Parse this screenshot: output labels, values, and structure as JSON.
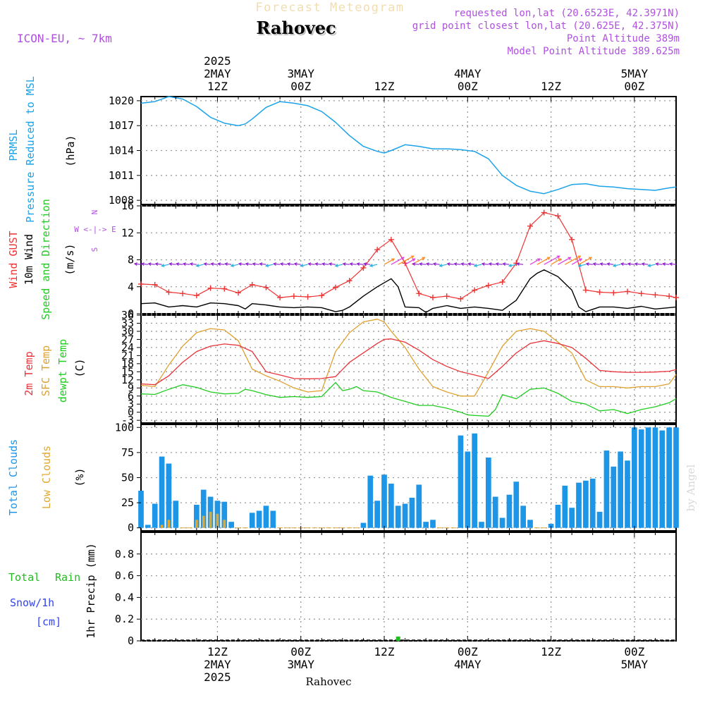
{
  "header": {
    "subtitle": "Forecast Meteogram",
    "title": "Rahovec",
    "model": "ICON-EU, ~ 7km",
    "info_lines": [
      "requested lon,lat (20.6523E, 42.3971N)",
      "grid point closest lon,lat (20.625E, 42.375N)",
      "Point Altitude 389m",
      "Model Point Altitude 389.625m"
    ],
    "watermark": "by Angel",
    "bottom_label": "Rahovec"
  },
  "colors": {
    "pressure": "#1aa3e8",
    "gust": "#ee3333",
    "wind": "#000000",
    "t2m": "#e8333a",
    "sfc": "#e0a030",
    "dewpt": "#22cc22",
    "total_clouds": "#1e96e8",
    "low_clouds": "#e0a830",
    "rain": "#22bb22",
    "snow": "#3344ee",
    "purple": "#b050e0"
  },
  "time_axis": {
    "top_labels": [
      {
        "hour": 12,
        "lines": [
          "2025",
          "2MAY",
          "12Z"
        ]
      },
      {
        "hour": 24,
        "lines": [
          "3MAY",
          "00Z"
        ]
      },
      {
        "hour": 36,
        "lines": [
          "12Z"
        ]
      },
      {
        "hour": 48,
        "lines": [
          "4MAY",
          "00Z"
        ]
      },
      {
        "hour": 60,
        "lines": [
          "12Z"
        ]
      },
      {
        "hour": 72,
        "lines": [
          "5MAY",
          "00Z"
        ]
      }
    ],
    "bottom_labels": [
      {
        "hour": 12,
        "lines": [
          "12Z",
          "2MAY",
          "2025"
        ]
      },
      {
        "hour": 24,
        "lines": [
          "00Z",
          "3MAY"
        ]
      },
      {
        "hour": 36,
        "lines": [
          "12Z"
        ]
      },
      {
        "hour": 48,
        "lines": [
          "00Z",
          "4MAY"
        ]
      },
      {
        "hour": 60,
        "lines": [
          "12Z"
        ]
      },
      {
        "hour": 72,
        "lines": [
          "00Z",
          "5MAY"
        ]
      }
    ],
    "start_hour": 1,
    "end_hour": 78
  },
  "chart_data": [
    {
      "type": "line",
      "panel": "pressure",
      "title": "PRMSL Pressure Reduced to MSL",
      "ylabel": "(hPa)",
      "label_lines": [
        "PRMSL",
        "Pressure Reduced to MSL"
      ],
      "ylim": [
        1007.5,
        1020.5
      ],
      "yticks": [
        1008,
        1011,
        1014,
        1017,
        1020
      ],
      "series": [
        {
          "name": "PRMSL",
          "x": [
            1,
            3,
            5,
            7,
            9,
            11,
            13,
            15,
            16,
            17,
            19,
            21,
            23,
            25,
            27,
            29,
            31,
            33,
            35,
            36,
            37,
            39,
            41,
            43,
            45,
            47,
            49,
            51,
            53,
            55,
            57,
            59,
            61,
            63,
            65,
            67,
            69,
            71,
            73,
            75,
            77,
            78
          ],
          "y": [
            1019.7,
            1019.9,
            1020.5,
            1020.2,
            1019.3,
            1018.0,
            1017.3,
            1017.0,
            1017.2,
            1017.8,
            1019.2,
            1019.9,
            1019.7,
            1019.4,
            1018.7,
            1017.4,
            1015.8,
            1014.5,
            1013.9,
            1013.7,
            1014.0,
            1014.7,
            1014.5,
            1014.2,
            1014.2,
            1014.1,
            1013.9,
            1013.0,
            1011.0,
            1009.8,
            1009.1,
            1008.8,
            1009.3,
            1009.9,
            1010.0,
            1009.7,
            1009.6,
            1009.4,
            1009.3,
            1009.2,
            1009.5,
            1009.6
          ]
        }
      ]
    },
    {
      "type": "line",
      "panel": "wind",
      "title": "Wind GUST / 10m Wind Speed and Direction",
      "ylabel": "(m/s)",
      "label_lines": [
        "Wind GUST",
        "10m Wind",
        "Speed and Direction"
      ],
      "compass": [
        "N",
        "W <-|-> E",
        "S"
      ],
      "ylim": [
        0,
        16
      ],
      "yticks": [
        0,
        4,
        8,
        12,
        16
      ],
      "series": [
        {
          "name": "Wind GUST",
          "x": [
            1,
            3,
            5,
            7,
            9,
            11,
            13,
            15,
            17,
            19,
            21,
            23,
            25,
            27,
            29,
            31,
            33,
            35,
            37,
            39,
            41,
            43,
            45,
            47,
            49,
            51,
            53,
            55,
            57,
            59,
            61,
            63,
            65,
            67,
            69,
            71,
            73,
            75,
            77,
            78
          ],
          "y": [
            4.4,
            4.3,
            3.2,
            3.0,
            2.7,
            3.8,
            3.7,
            3.1,
            4.3,
            3.9,
            2.4,
            2.6,
            2.5,
            2.7,
            3.9,
            4.9,
            6.8,
            9.5,
            11.0,
            7.5,
            3.0,
            2.4,
            2.6,
            2.2,
            3.5,
            4.2,
            4.7,
            7.5,
            13.0,
            15.0,
            14.5,
            11.0,
            3.5,
            3.2,
            3.1,
            3.3,
            3.0,
            2.8,
            2.6,
            2.4
          ]
        },
        {
          "name": "10m Wind",
          "x": [
            1,
            3,
            5,
            7,
            9,
            11,
            13,
            15,
            16,
            17,
            19,
            21,
            23,
            25,
            27,
            29,
            30,
            31,
            33,
            35,
            37,
            38,
            39,
            41,
            42,
            43,
            45,
            47,
            49,
            51,
            53,
            55,
            57,
            58,
            59,
            61,
            63,
            64,
            65,
            67,
            69,
            71,
            73,
            75,
            77,
            78
          ],
          "y": [
            1.5,
            1.6,
            1.0,
            1.2,
            1.0,
            1.6,
            1.5,
            1.2,
            0.7,
            1.5,
            1.3,
            1.0,
            0.9,
            1.0,
            0.9,
            0.3,
            0.5,
            1.0,
            2.6,
            4.0,
            5.2,
            4.0,
            1.0,
            0.9,
            0.2,
            0.8,
            1.2,
            0.8,
            1.0,
            0.8,
            0.5,
            2.0,
            5.2,
            6.0,
            6.5,
            5.5,
            3.5,
            1.0,
            0.3,
            1.0,
            1.0,
            0.8,
            1.1,
            0.7,
            0.9,
            1.0
          ]
        }
      ]
    },
    {
      "type": "line",
      "panel": "temperature",
      "title": "2m Temp / SFC Temp / dewpt Temp",
      "ylabel": "(C)",
      "label_lines": [
        "2m Temp",
        "SFC Temp",
        "dewpt Temp"
      ],
      "ylim": [
        -4,
        36
      ],
      "yticks": [
        -3,
        0,
        3,
        6,
        9,
        12,
        15,
        18,
        21,
        24,
        27,
        30,
        33,
        36
      ],
      "series": [
        {
          "name": "2m Temp",
          "x": [
            1,
            3,
            5,
            7,
            9,
            11,
            13,
            15,
            17,
            19,
            21,
            23,
            25,
            27,
            29,
            31,
            33,
            35,
            36,
            37,
            39,
            41,
            43,
            45,
            47,
            49,
            51,
            53,
            55,
            57,
            59,
            61,
            63,
            65,
            67,
            69,
            71,
            73,
            75,
            77,
            78
          ],
          "y": [
            10.5,
            10.2,
            13.5,
            18.5,
            22.5,
            24.5,
            25.3,
            24.8,
            22.5,
            15.0,
            13.8,
            12.5,
            12.4,
            12.5,
            13.2,
            18.5,
            22.0,
            25.5,
            27.0,
            27.2,
            26.0,
            23.0,
            19.5,
            17.0,
            15.0,
            13.8,
            12.5,
            17.0,
            22.0,
            25.5,
            26.5,
            25.5,
            24.0,
            20.0,
            15.5,
            15.0,
            14.8,
            14.8,
            14.9,
            15.2,
            15.8
          ]
        },
        {
          "name": "SFC Temp",
          "x": [
            1,
            3,
            5,
            7,
            9,
            11,
            13,
            15,
            17,
            19,
            21,
            23,
            25,
            27,
            29,
            31,
            33,
            35,
            36,
            37,
            39,
            41,
            43,
            45,
            47,
            49,
            51,
            53,
            55,
            57,
            59,
            61,
            63,
            65,
            67,
            69,
            71,
            73,
            75,
            77,
            78
          ],
          "y": [
            10.0,
            9.5,
            17.5,
            24.5,
            29.5,
            31.0,
            30.5,
            26.5,
            16.0,
            13.5,
            11.5,
            9.0,
            7.5,
            8.0,
            22.5,
            29.5,
            33.5,
            34.5,
            33.5,
            30.0,
            24.0,
            16.0,
            9.5,
            7.5,
            6.0,
            6.0,
            15.0,
            24.5,
            30.0,
            31.0,
            30.0,
            26.0,
            22.0,
            12.0,
            9.5,
            9.5,
            9.0,
            9.5,
            9.5,
            10.5,
            14.0
          ]
        },
        {
          "name": "dewpt Temp",
          "x": [
            1,
            3,
            5,
            7,
            9,
            11,
            13,
            15,
            16,
            17,
            19,
            21,
            23,
            25,
            27,
            29,
            30,
            31,
            32,
            33,
            35,
            37,
            39,
            41,
            43,
            45,
            47,
            48,
            49,
            51,
            52,
            53,
            55,
            57,
            59,
            61,
            63,
            65,
            67,
            69,
            71,
            73,
            75,
            77,
            78
          ],
          "y": [
            6.8,
            6.6,
            8.5,
            10.2,
            9.2,
            7.5,
            6.8,
            7.0,
            8.5,
            8.0,
            6.5,
            5.5,
            5.8,
            5.5,
            5.8,
            11.0,
            8.0,
            8.5,
            9.5,
            8.0,
            7.5,
            5.5,
            4.0,
            2.5,
            2.5,
            1.5,
            0.0,
            -1.0,
            -1.2,
            -1.5,
            1.0,
            6.5,
            5.0,
            8.5,
            9.0,
            7.0,
            4.0,
            3.0,
            0.5,
            1.0,
            -0.5,
            1.0,
            2.0,
            3.5,
            5.0
          ]
        }
      ]
    },
    {
      "type": "bar",
      "panel": "clouds",
      "title": "Total Clouds / Low Clouds",
      "ylabel": "(%)",
      "label_lines": [
        "Total Clouds",
        "Low Clouds"
      ],
      "ylim": [
        -3,
        103
      ],
      "yticks": [
        0,
        25,
        50,
        75,
        100
      ],
      "hours": [
        1,
        2,
        3,
        4,
        5,
        6,
        7,
        8,
        9,
        10,
        11,
        12,
        13,
        14,
        15,
        16,
        17,
        18,
        19,
        20,
        21,
        22,
        23,
        24,
        25,
        26,
        27,
        28,
        29,
        30,
        31,
        32,
        33,
        34,
        35,
        36,
        37,
        38,
        39,
        40,
        41,
        42,
        43,
        44,
        45,
        46,
        47,
        48,
        49,
        50,
        51,
        52,
        53,
        54,
        55,
        56,
        57,
        58,
        59,
        60,
        61,
        62,
        63,
        64,
        65,
        66,
        67,
        68,
        69,
        70,
        71,
        72,
        73,
        74,
        75,
        76,
        77,
        78
      ],
      "series": [
        {
          "name": "Total Clouds",
          "values": [
            37,
            3,
            24,
            71,
            64,
            27,
            0,
            0,
            23,
            38,
            31,
            27,
            26,
            6,
            0,
            0,
            15,
            17,
            22,
            17,
            0,
            0,
            0,
            0,
            0,
            0,
            0,
            0,
            0,
            0,
            0,
            0,
            5,
            52,
            27,
            53,
            44,
            22,
            24,
            30,
            43,
            6,
            8,
            0,
            0,
            0,
            92,
            76,
            94,
            6,
            70,
            31,
            10,
            33,
            46,
            22,
            8,
            0,
            0,
            4,
            23,
            42,
            20,
            45,
            47,
            49,
            16,
            77,
            61,
            76,
            67,
            100,
            98,
            100,
            100,
            97,
            100,
            100
          ]
        },
        {
          "name": "Low Clouds",
          "values": [
            0,
            0,
            0,
            3,
            8,
            0,
            0,
            0,
            8,
            12,
            16,
            14,
            8,
            0,
            0,
            0,
            0,
            0,
            0,
            0,
            0,
            0,
            0,
            0,
            0,
            0,
            0,
            0,
            0,
            0,
            0,
            0,
            0,
            0,
            0,
            0,
            0,
            0,
            0,
            0,
            0,
            0,
            0,
            0,
            0,
            0,
            0,
            0,
            0,
            0,
            0,
            0,
            0,
            0,
            0,
            0,
            0,
            0,
            0,
            0,
            0,
            0,
            0,
            0,
            0,
            0,
            0,
            0,
            0,
            0,
            0,
            0,
            0,
            0,
            0,
            0,
            0,
            0
          ]
        }
      ]
    },
    {
      "type": "bar",
      "panel": "precip",
      "title": "Total Rain / Snow/1h [cm] / 1hr Precip (mm)",
      "ylabel": "1hr Precip (mm)",
      "label_lines": [
        "Total",
        "Rain",
        "Snow/1h",
        "[cm]"
      ],
      "ylim": [
        0,
        1.0
      ],
      "yticks": [
        0,
        0.2,
        0.4,
        0.6,
        0.8
      ],
      "ytick_labels": [
        "0",
        "0.2",
        "0.4",
        "0.6",
        "0.8"
      ],
      "series": [
        {
          "name": "Total Rain",
          "hours": [
            38
          ],
          "values": [
            0.02
          ]
        }
      ]
    }
  ]
}
